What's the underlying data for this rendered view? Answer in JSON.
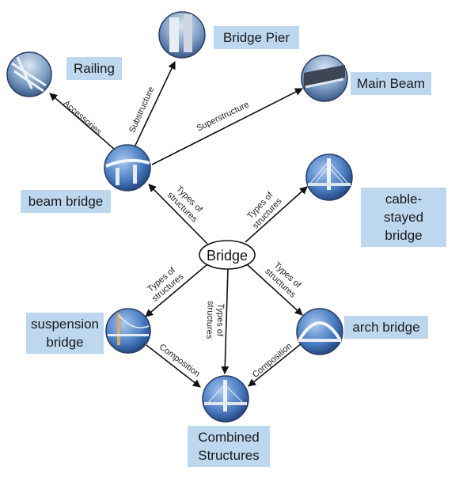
{
  "root": {
    "label": "Bridge"
  },
  "nodes": [
    {
      "id": "railing",
      "label": "Railing"
    },
    {
      "id": "pier",
      "label": "Bridge Pier"
    },
    {
      "id": "main-beam",
      "label": "Main Beam"
    },
    {
      "id": "beam-bridge",
      "label": "beam bridge"
    },
    {
      "id": "cable-stayed",
      "label": "cable-stayed\nbridge"
    },
    {
      "id": "suspension",
      "label": "suspension\nbridge"
    },
    {
      "id": "arch",
      "label": "arch bridge"
    },
    {
      "id": "combined",
      "label": "Combined\nStructures"
    }
  ],
  "edges": {
    "accessories": "Accessories",
    "substructure": "Substructure",
    "superstructure": "Superstructure",
    "types_line1": "Types of",
    "types_line2": "structures",
    "composition": "Composition"
  },
  "colors": {
    "label_fill": "#bdd7ee",
    "arrow": "#111111",
    "photo_sky": "#3f6fb5"
  }
}
